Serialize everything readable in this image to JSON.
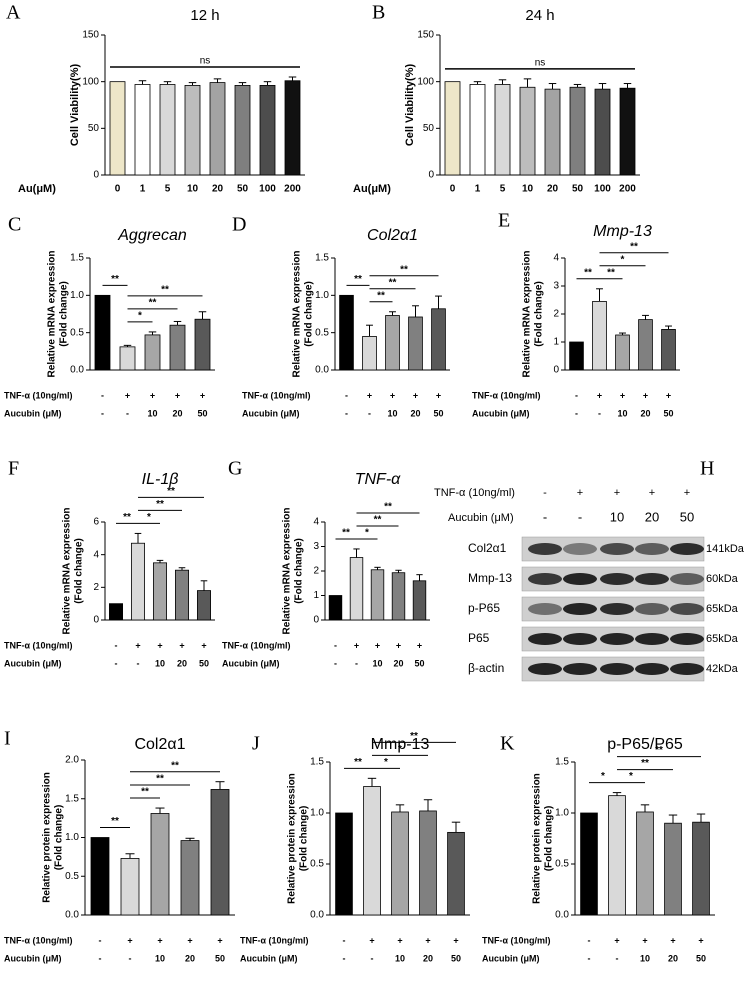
{
  "chart_data": [
    {
      "type": "bar",
      "letter": "A",
      "title": "12 h",
      "title_italic": false,
      "ylabel": [
        "Cell Viability(%)"
      ],
      "xlabel": "Au(μM)",
      "categories": [
        "0",
        "1",
        "5",
        "10",
        "20",
        "50",
        "100",
        "200"
      ],
      "values": [
        100,
        97,
        97,
        96,
        99,
        96,
        96,
        101
      ],
      "errors": [
        0,
        4,
        3,
        3,
        4,
        3,
        4,
        4
      ],
      "colors": [
        "#ede6c8",
        "#ffffff",
        "#d9d9d9",
        "#bdbdbd",
        "#a3a3a3",
        "#7f7f7f",
        "#4d4d4d",
        "#111111"
      ],
      "ylim": [
        0,
        150
      ],
      "yticks": [
        0,
        50,
        100,
        150
      ],
      "significance": [
        {
          "label": "ns",
          "between": [
            0,
            7
          ]
        }
      ]
    },
    {
      "type": "bar",
      "letter": "B",
      "title": "24 h",
      "title_italic": false,
      "ylabel": [
        "Cell Viability(%)"
      ],
      "xlabel": "Au(μM)",
      "categories": [
        "0",
        "1",
        "5",
        "10",
        "20",
        "50",
        "100",
        "200"
      ],
      "values": [
        100,
        97,
        97,
        94,
        92,
        94,
        92,
        93
      ],
      "errors": [
        0,
        3,
        5,
        9,
        6,
        3,
        6,
        5
      ],
      "colors": [
        "#ede6c8",
        "#ffffff",
        "#d9d9d9",
        "#bdbdbd",
        "#a3a3a3",
        "#7f7f7f",
        "#4d4d4d",
        "#111111"
      ],
      "ylim": [
        0,
        150
      ],
      "yticks": [
        0,
        50,
        100,
        150
      ],
      "significance": [
        {
          "label": "ns",
          "between": [
            0,
            7
          ]
        }
      ]
    },
    {
      "type": "bar",
      "letter": "C",
      "title": "Aggrecan",
      "title_italic": true,
      "ylabel": [
        "Relative mRNA expression",
        "(Fold change)"
      ],
      "conditions": [
        {
          "label": "TNF-α (10ng/ml)",
          "labels": [
            "-",
            "+",
            "+",
            "+",
            "+"
          ]
        },
        {
          "label": "Aucubin (μM)",
          "labels": [
            "-",
            "-",
            "10",
            "20",
            "50"
          ]
        }
      ],
      "values": [
        1.0,
        0.31,
        0.47,
        0.6,
        0.68
      ],
      "errors": [
        0,
        0.02,
        0.04,
        0.05,
        0.1
      ],
      "colors": [
        "#000000",
        "#d9d9d9",
        "#a6a6a6",
        "#808080",
        "#595959"
      ],
      "ylim": [
        0,
        1.5
      ],
      "yticks": [
        {
          "value": 0,
          "label": "0.0"
        },
        {
          "value": 0.5,
          "label": "0.5"
        },
        {
          "value": 1,
          "label": "1.0"
        },
        {
          "value": 1.5,
          "label": "1.5"
        }
      ],
      "significance": [
        {
          "label": "**",
          "between": [
            0,
            1
          ]
        },
        {
          "label": "*",
          "between": [
            1,
            2
          ]
        },
        {
          "label": "**",
          "between": [
            1,
            3
          ]
        },
        {
          "label": "**",
          "between": [
            1,
            4
          ]
        }
      ]
    },
    {
      "type": "bar",
      "letter": "D",
      "title": "Col2α1",
      "title_italic": true,
      "ylabel": [
        "Relative mRNA expression",
        "(Fold change)"
      ],
      "conditions": [
        {
          "label": "TNF-α (10ng/ml)",
          "labels": [
            "-",
            "+",
            "+",
            "+",
            "+"
          ]
        },
        {
          "label": "Aucubin (μM)",
          "labels": [
            "-",
            "-",
            "10",
            "20",
            "50"
          ]
        }
      ],
      "values": [
        1.0,
        0.45,
        0.73,
        0.71,
        0.82
      ],
      "errors": [
        0,
        0.15,
        0.05,
        0.15,
        0.17
      ],
      "colors": [
        "#000000",
        "#d9d9d9",
        "#a6a6a6",
        "#808080",
        "#595959"
      ],
      "ylim": [
        0,
        1.5
      ],
      "yticks": [
        {
          "value": 0,
          "label": "0.0"
        },
        {
          "value": 0.5,
          "label": "0.5"
        },
        {
          "value": 1,
          "label": "1.0"
        },
        {
          "value": 1.5,
          "label": "1.5"
        }
      ],
      "significance": [
        {
          "label": "**",
          "between": [
            0,
            1
          ]
        },
        {
          "label": "**",
          "between": [
            1,
            2
          ]
        },
        {
          "label": "**",
          "between": [
            1,
            3
          ]
        },
        {
          "label": "**",
          "between": [
            1,
            4
          ]
        }
      ]
    },
    {
      "type": "bar",
      "letter": "E",
      "title": "Mmp-13",
      "title_italic": true,
      "ylabel": [
        "Relative mRNA expression",
        "(Fold change)"
      ],
      "conditions": [
        {
          "label": "TNF-α (10ng/ml)",
          "labels": [
            "-",
            "+",
            "+",
            "+",
            "+"
          ]
        },
        {
          "label": "Aucubin (μM)",
          "labels": [
            "-",
            "-",
            "10",
            "20",
            "50"
          ]
        }
      ],
      "values": [
        1,
        2.45,
        1.25,
        1.8,
        1.45
      ],
      "errors": [
        0,
        0.45,
        0.07,
        0.15,
        0.12
      ],
      "colors": [
        "#000000",
        "#d9d9d9",
        "#a6a6a6",
        "#808080",
        "#595959"
      ],
      "ylim": [
        0,
        4
      ],
      "yticks": [
        0,
        1,
        2,
        3,
        4
      ],
      "significance": [
        {
          "label": "**",
          "between": [
            0,
            1
          ]
        },
        {
          "label": "**",
          "between": [
            1,
            2
          ]
        },
        {
          "label": "*",
          "between": [
            1,
            3
          ]
        },
        {
          "label": "**",
          "between": [
            1,
            4
          ]
        }
      ]
    },
    {
      "type": "bar",
      "letter": "F",
      "title": "IL-1β",
      "title_italic": true,
      "ylabel": [
        "Relative mRNA expression",
        "(Fold change)"
      ],
      "conditions": [
        {
          "label": "TNF-α (10ng/ml)",
          "labels": [
            "-",
            "+",
            "+",
            "+",
            "+"
          ]
        },
        {
          "label": "Aucubin (μM)",
          "labels": [
            "-",
            "-",
            "10",
            "20",
            "50"
          ]
        }
      ],
      "values": [
        1,
        4.7,
        3.5,
        3.05,
        1.8
      ],
      "errors": [
        0,
        0.6,
        0.15,
        0.15,
        0.6
      ],
      "colors": [
        "#000000",
        "#d9d9d9",
        "#a6a6a6",
        "#808080",
        "#595959"
      ],
      "ylim": [
        0,
        6
      ],
      "yticks": [
        0,
        2,
        4,
        6
      ],
      "significance": [
        {
          "label": "**",
          "between": [
            0,
            1
          ]
        },
        {
          "label": "*",
          "between": [
            1,
            2
          ]
        },
        {
          "label": "**",
          "between": [
            1,
            3
          ]
        },
        {
          "label": "**",
          "between": [
            1,
            4
          ]
        }
      ]
    },
    {
      "type": "bar",
      "letter": "G",
      "title": "TNF-α",
      "title_italic": true,
      "ylabel": [
        "Relative mRNA expression",
        "(Fold change)"
      ],
      "conditions": [
        {
          "label": "TNF-α (10ng/ml)",
          "labels": [
            "-",
            "+",
            "+",
            "+",
            "+"
          ]
        },
        {
          "label": "Aucubin (μM)",
          "labels": [
            "-",
            "-",
            "10",
            "20",
            "50"
          ]
        }
      ],
      "values": [
        1,
        2.55,
        2.05,
        1.93,
        1.6
      ],
      "errors": [
        0,
        0.35,
        0.1,
        0.1,
        0.25
      ],
      "colors": [
        "#000000",
        "#d9d9d9",
        "#a6a6a6",
        "#808080",
        "#595959"
      ],
      "ylim": [
        0,
        4
      ],
      "yticks": [
        0,
        1,
        2,
        3,
        4
      ],
      "significance": [
        {
          "label": "**",
          "between": [
            0,
            1
          ]
        },
        {
          "label": "*",
          "between": [
            1,
            2
          ]
        },
        {
          "label": "**",
          "between": [
            1,
            3
          ]
        },
        {
          "label": "**",
          "between": [
            1,
            4
          ]
        }
      ]
    },
    {
      "type": "bar",
      "letter": "I",
      "title": "Col2α1",
      "title_italic": false,
      "ylabel": [
        "Relative protein expression",
        "(Fold change)"
      ],
      "conditions": [
        {
          "label": "TNF-α (10ng/ml)",
          "labels": [
            "-",
            "+",
            "+",
            "+",
            "+"
          ]
        },
        {
          "label": "Aucubin (μM)",
          "labels": [
            "-",
            "-",
            "10",
            "20",
            "50"
          ]
        }
      ],
      "values": [
        1.0,
        0.73,
        1.31,
        0.96,
        1.62
      ],
      "errors": [
        0,
        0.06,
        0.07,
        0.03,
        0.1
      ],
      "colors": [
        "#000000",
        "#d9d9d9",
        "#a6a6a6",
        "#808080",
        "#595959"
      ],
      "ylim": [
        0,
        2
      ],
      "yticks": [
        {
          "value": 0,
          "label": "0.0"
        },
        {
          "value": 0.5,
          "label": "0.5"
        },
        {
          "value": 1,
          "label": "1.0"
        },
        {
          "value": 1.5,
          "label": "1.5"
        },
        {
          "value": 2,
          "label": "2.0"
        }
      ],
      "significance": [
        {
          "label": "**",
          "between": [
            0,
            1
          ]
        },
        {
          "label": "**",
          "between": [
            1,
            2
          ]
        },
        {
          "label": "**",
          "between": [
            1,
            3
          ]
        },
        {
          "label": "**",
          "between": [
            1,
            4
          ]
        }
      ]
    },
    {
      "type": "bar",
      "letter": "J",
      "title": "Mmp-13",
      "title_italic": false,
      "ylabel": [
        "Relative protein expression",
        "(Fold change)"
      ],
      "conditions": [
        {
          "label": "TNF-α (10ng/ml)",
          "labels": [
            "-",
            "+",
            "+",
            "+",
            "+"
          ]
        },
        {
          "label": "Aucubin (μM)",
          "labels": [
            "-",
            "-",
            "10",
            "20",
            "50"
          ]
        }
      ],
      "values": [
        1.0,
        1.26,
        1.01,
        1.02,
        0.81
      ],
      "errors": [
        0,
        0.08,
        0.07,
        0.11,
        0.1
      ],
      "colors": [
        "#000000",
        "#d9d9d9",
        "#a6a6a6",
        "#808080",
        "#595959"
      ],
      "ylim": [
        0,
        1.5
      ],
      "yticks": [
        {
          "value": 0,
          "label": "0.0"
        },
        {
          "value": 0.5,
          "label": "0.5"
        },
        {
          "value": 1,
          "label": "1.0"
        },
        {
          "value": 1.5,
          "label": "1.5"
        }
      ],
      "significance": [
        {
          "label": "**",
          "between": [
            0,
            1
          ]
        },
        {
          "label": "*",
          "between": [
            1,
            2
          ]
        },
        {
          "label": "*",
          "between": [
            1,
            3
          ]
        },
        {
          "label": "**",
          "between": [
            1,
            4
          ]
        }
      ]
    },
    {
      "type": "bar",
      "letter": "K",
      "title": "p-P65/P65",
      "title_italic": false,
      "ylabel": [
        "Relative protein expression",
        "(Fold change)"
      ],
      "conditions": [
        {
          "label": "TNF-α (10ng/ml)",
          "labels": [
            "-",
            "+",
            "+",
            "+",
            "+"
          ]
        },
        {
          "label": "Aucubin (μM)",
          "labels": [
            "-",
            "-",
            "10",
            "20",
            "50"
          ]
        }
      ],
      "values": [
        1.0,
        1.17,
        1.01,
        0.9,
        0.91
      ],
      "errors": [
        0,
        0.03,
        0.07,
        0.08,
        0.08
      ],
      "colors": [
        "#000000",
        "#d9d9d9",
        "#a6a6a6",
        "#808080",
        "#595959"
      ],
      "ylim": [
        0,
        1.5
      ],
      "yticks": [
        {
          "value": 0,
          "label": "0.0"
        },
        {
          "value": 0.5,
          "label": "0.5"
        },
        {
          "value": 1,
          "label": "1.0"
        },
        {
          "value": 1.5,
          "label": "1.5"
        }
      ],
      "significance": [
        {
          "label": "*",
          "between": [
            0,
            1
          ]
        },
        {
          "label": "*",
          "between": [
            1,
            2
          ]
        },
        {
          "label": "**",
          "between": [
            1,
            3
          ]
        },
        {
          "label": "**",
          "between": [
            1,
            4
          ]
        }
      ]
    }
  ],
  "blot": {
    "letter": "H",
    "conditions": [
      {
        "label": "TNF-α (10ng/ml)",
        "labels": [
          "-",
          "+",
          "+",
          "+",
          "+"
        ]
      },
      {
        "label": "Aucubin (μM)",
        "labels": [
          "-",
          "-",
          "10",
          "20",
          "50"
        ]
      }
    ],
    "bands": [
      {
        "name": "Col2α1",
        "size": "141kDa"
      },
      {
        "name": "Mmp-13",
        "size": "60kDa"
      },
      {
        "name": "p-P65",
        "size": "65kDa"
      },
      {
        "name": "P65",
        "size": "65kDa"
      },
      {
        "name": "β-actin",
        "size": "42kDa"
      }
    ]
  }
}
